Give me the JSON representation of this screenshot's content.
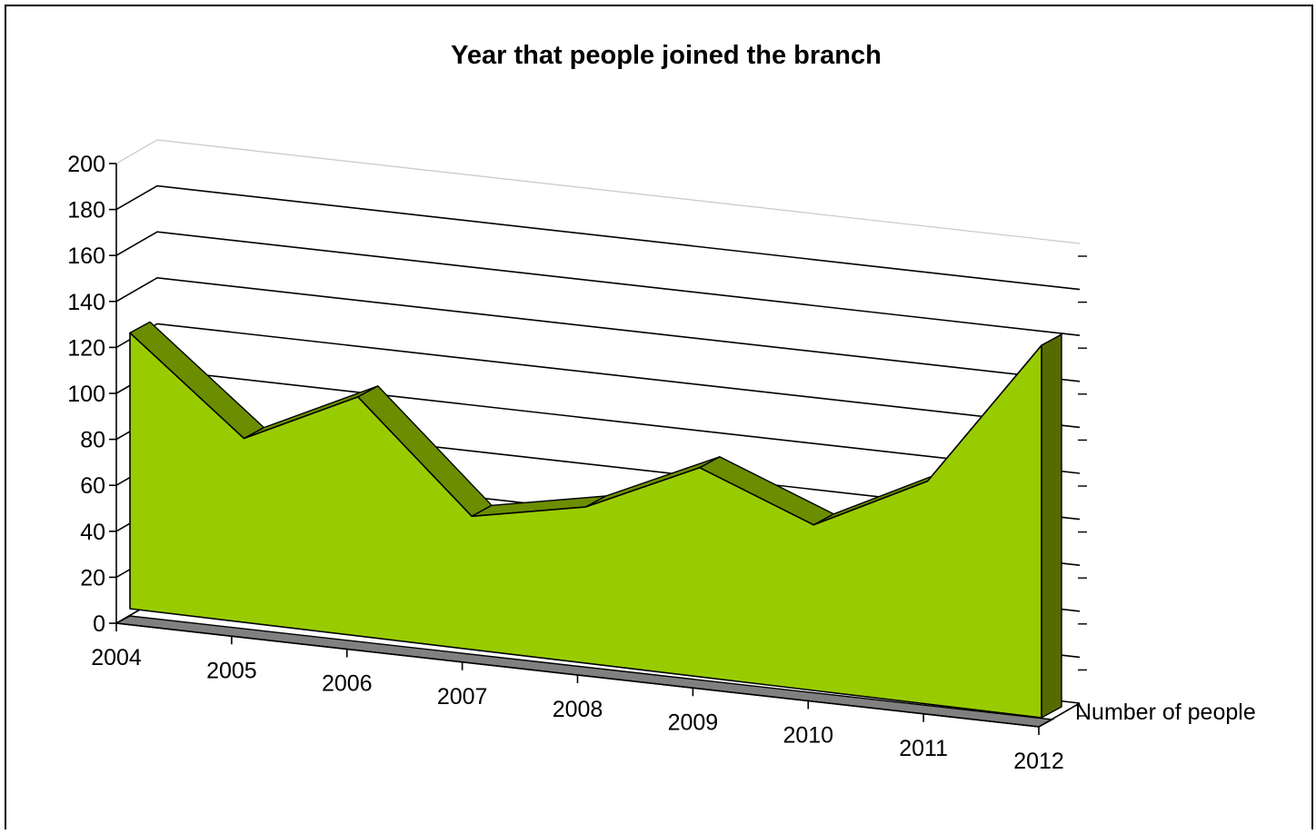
{
  "chart_data": {
    "type": "area",
    "title": "Year that people joined the branch",
    "categories": [
      "2004",
      "2005",
      "2006",
      "2007",
      "2008",
      "2009",
      "2010",
      "2011",
      "2012"
    ],
    "series": [
      {
        "name": "Number of people",
        "values": [
          120,
          80,
          104,
          58,
          68,
          91,
          72,
          97,
          162
        ]
      }
    ],
    "y_ticks": [
      "0",
      "20",
      "40",
      "60",
      "80",
      "100",
      "120",
      "140",
      "160",
      "180",
      "200"
    ],
    "ylim": [
      0,
      200
    ],
    "grid": true,
    "three_d": true,
    "colors": {
      "front": "#99CC00",
      "top": "#6B8E00",
      "side": "#556B00",
      "floor": "#808080",
      "grid": "#000000"
    }
  }
}
